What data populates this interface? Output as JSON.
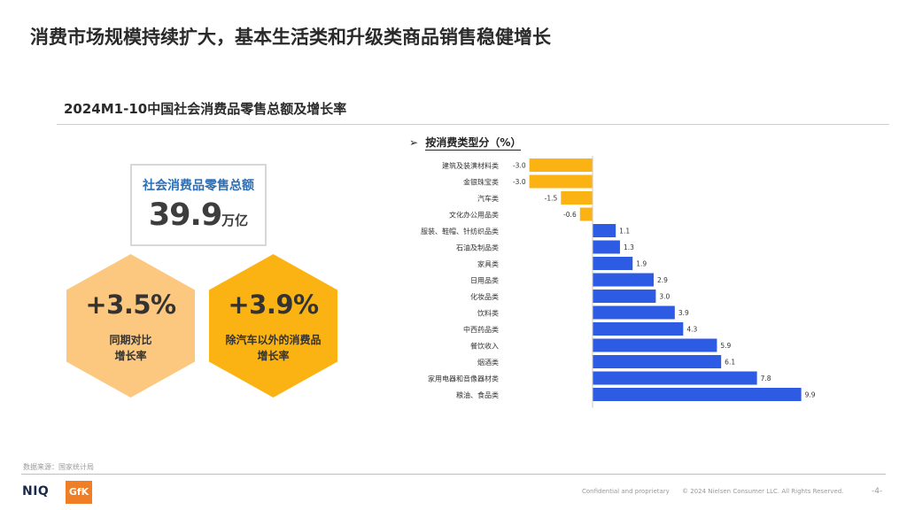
{
  "title": "消费市场规模持续扩大，基本生活类和升级类商品销售稳健增长",
  "subtitle": "2024M1-10中国社会消费品零售总额及增长率",
  "total_card": {
    "label": "社会消费品零售总额",
    "value": "39.9",
    "unit": "万亿"
  },
  "hex_cards": [
    {
      "value": "+3.5%",
      "label_line1": "同期对比",
      "label_line2": "增长率",
      "color": "#fcc77e"
    },
    {
      "value": "+3.9%",
      "label_line1": "除汽车以外的消费品",
      "label_line2": "增长率",
      "color": "#fbb313"
    }
  ],
  "section_label": {
    "arrow": "➢",
    "text": "按消费类型分（%）"
  },
  "chart_data": {
    "type": "bar",
    "orientation": "horizontal",
    "categories": [
      "建筑及装潢材料类",
      "金银珠宝类",
      "汽车类",
      "文化办公用品类",
      "服装、鞋帽、针纺织品类",
      "石油及制品类",
      "家具类",
      "日用品类",
      "化妆品类",
      "饮料类",
      "中西药品类",
      "餐饮收入",
      "烟酒类",
      "家用电器和音像器材类",
      "粮油、食品类"
    ],
    "values": [
      -3.0,
      -3.0,
      -1.5,
      -0.6,
      1.1,
      1.3,
      1.9,
      2.9,
      3.0,
      3.9,
      4.3,
      5.9,
      6.1,
      7.8,
      9.9
    ],
    "value_labels": [
      "-3.0",
      "-3.0",
      "-1.5",
      "-0.6",
      "1.1",
      "1.3",
      "1.9",
      "2.9",
      "3.0",
      "3.9",
      "4.3",
      "5.9",
      "6.1",
      "7.8",
      "9.9"
    ],
    "negative_color": "#fbb313",
    "positive_color": "#2d5be3",
    "xlim": [
      -3.0,
      9.9
    ]
  },
  "footer": {
    "source": "数据来源：国家统计局",
    "logo_left": "NIQ",
    "logo_right": "GfK",
    "confidential": "Confidential and proprietary",
    "copyright": "© 2024 Nielsen Consumer LLC. All Rights Reserved.",
    "page": "-4-"
  }
}
